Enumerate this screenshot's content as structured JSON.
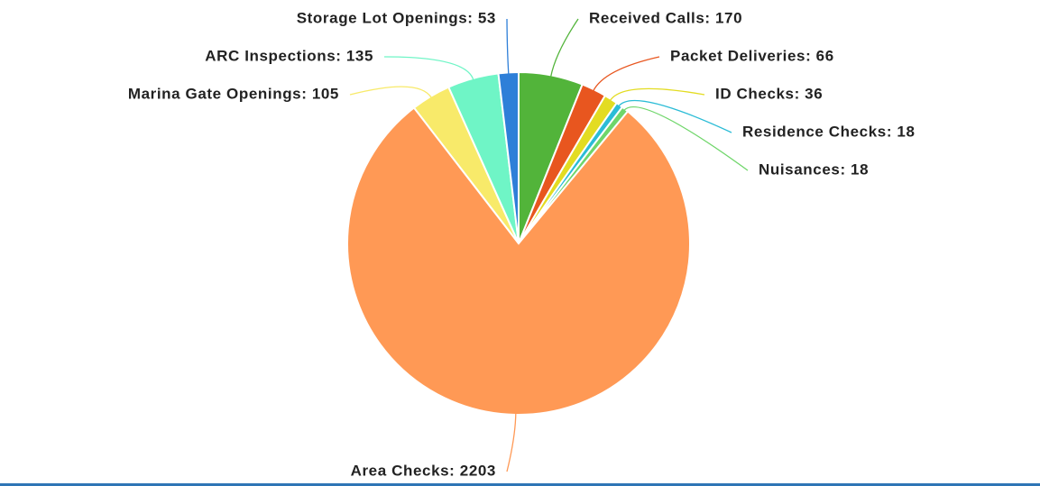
{
  "chart_data": {
    "type": "pie",
    "categories": [
      "Received Calls: 170",
      "Packet Deliveries: 66",
      "ID Checks: 36",
      "Residence Checks: 18",
      "Nuisances: 18",
      "Area Checks: 2203",
      "Marina Gate Openings: 105",
      "ARC Inspections: 135",
      "Storage Lot Openings: 53"
    ],
    "values": [
      170,
      66,
      36,
      18,
      18,
      2203,
      105,
      135,
      53
    ],
    "colors": [
      "#52b43a",
      "#e8561f",
      "#e3dc22",
      "#2bbcd6",
      "#6fd66a",
      "#ff9955",
      "#f8ea6a",
      "#6ff5c6",
      "#2e7fd8"
    ]
  }
}
